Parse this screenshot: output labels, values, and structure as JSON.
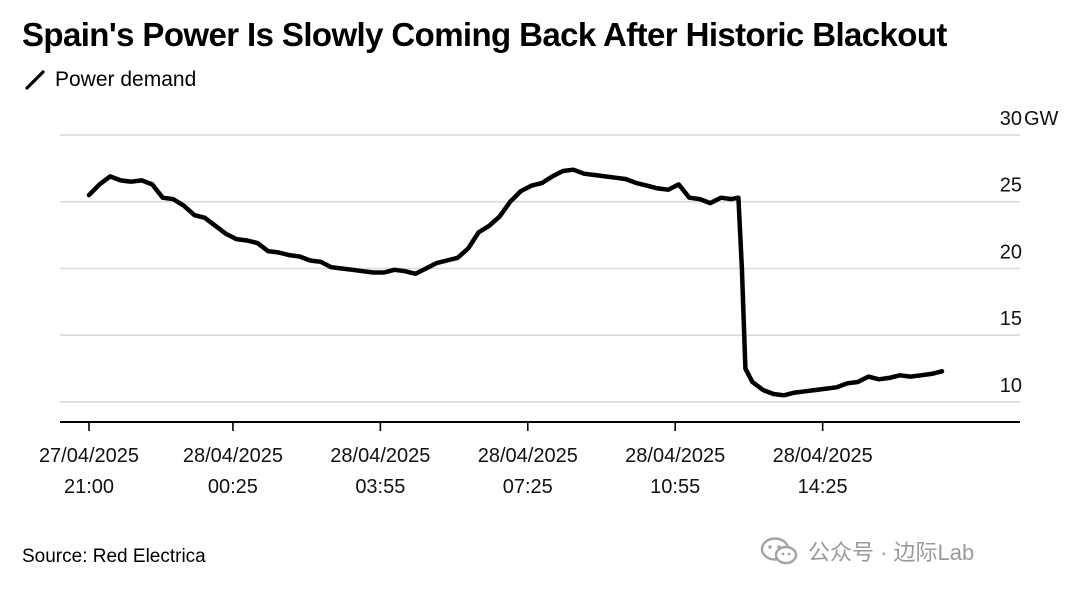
{
  "title": "Spain's Power Is Slowly Coming Back After Historic Blackout",
  "legend_label": "Power demand",
  "source": "Source: Red Electrica",
  "watermark": "公众号 · 边际Lab",
  "colors": {
    "line": "#000000",
    "grid": "#d9d9d9",
    "axis": "#000000",
    "text": "#111111",
    "watermark": "#9a9a9a"
  },
  "chart_data": {
    "type": "line",
    "title": "Spain's Power Is Slowly Coming Back After Historic Blackout",
    "xlabel": "",
    "ylabel": "",
    "unit": "GW",
    "ylim": [
      8.5,
      30
    ],
    "y_ticks": [
      {
        "value": 30,
        "label": "30",
        "unit": "GW"
      },
      {
        "value": 25,
        "label": "25"
      },
      {
        "value": 20,
        "label": "20"
      },
      {
        "value": 15,
        "label": "15"
      },
      {
        "value": 10,
        "label": "10"
      }
    ],
    "x_range": [
      "27/04/2025 21:00",
      "28/04/2025 17:15"
    ],
    "x_ticks": [
      {
        "value": "27/04/2025 21:00",
        "date": "27/04/2025",
        "time": "21:00"
      },
      {
        "value": "28/04/2025 00:25",
        "date": "28/04/2025",
        "time": "00:25"
      },
      {
        "value": "28/04/2025 03:55",
        "date": "28/04/2025",
        "time": "03:55"
      },
      {
        "value": "28/04/2025 07:25",
        "date": "28/04/2025",
        "time": "07:25"
      },
      {
        "value": "28/04/2025 10:55",
        "date": "28/04/2025",
        "time": "10:55"
      },
      {
        "value": "28/04/2025 14:25",
        "date": "28/04/2025",
        "time": "14:25"
      }
    ],
    "grid": true,
    "series": [
      {
        "name": "Power demand",
        "points": [
          [
            "27/04/2025 21:00",
            25.5
          ],
          [
            "27/04/2025 21:15",
            26.3
          ],
          [
            "27/04/2025 21:30",
            26.9
          ],
          [
            "27/04/2025 21:45",
            26.6
          ],
          [
            "27/04/2025 22:00",
            26.5
          ],
          [
            "27/04/2025 22:15",
            26.6
          ],
          [
            "27/04/2025 22:30",
            26.3
          ],
          [
            "27/04/2025 22:45",
            25.3
          ],
          [
            "27/04/2025 23:00",
            25.2
          ],
          [
            "27/04/2025 23:15",
            24.7
          ],
          [
            "27/04/2025 23:30",
            24.0
          ],
          [
            "27/04/2025 23:45",
            23.8
          ],
          [
            "28/04/2025 00:00",
            23.2
          ],
          [
            "28/04/2025 00:15",
            22.6
          ],
          [
            "28/04/2025 00:30",
            22.2
          ],
          [
            "28/04/2025 00:45",
            22.1
          ],
          [
            "28/04/2025 01:00",
            21.9
          ],
          [
            "28/04/2025 01:15",
            21.3
          ],
          [
            "28/04/2025 01:30",
            21.2
          ],
          [
            "28/04/2025 01:45",
            21.0
          ],
          [
            "28/04/2025 02:00",
            20.9
          ],
          [
            "28/04/2025 02:15",
            20.6
          ],
          [
            "28/04/2025 02:30",
            20.5
          ],
          [
            "28/04/2025 02:45",
            20.1
          ],
          [
            "28/04/2025 03:00",
            20.0
          ],
          [
            "28/04/2025 03:15",
            19.9
          ],
          [
            "28/04/2025 03:30",
            19.8
          ],
          [
            "28/04/2025 03:45",
            19.7
          ],
          [
            "28/04/2025 04:00",
            19.7
          ],
          [
            "28/04/2025 04:15",
            19.9
          ],
          [
            "28/04/2025 04:30",
            19.8
          ],
          [
            "28/04/2025 04:45",
            19.6
          ],
          [
            "28/04/2025 05:00",
            20.0
          ],
          [
            "28/04/2025 05:15",
            20.4
          ],
          [
            "28/04/2025 05:30",
            20.6
          ],
          [
            "28/04/2025 05:45",
            20.8
          ],
          [
            "28/04/2025 06:00",
            21.5
          ],
          [
            "28/04/2025 06:15",
            22.7
          ],
          [
            "28/04/2025 06:30",
            23.2
          ],
          [
            "28/04/2025 06:45",
            23.9
          ],
          [
            "28/04/2025 07:00",
            25.0
          ],
          [
            "28/04/2025 07:15",
            25.8
          ],
          [
            "28/04/2025 07:30",
            26.2
          ],
          [
            "28/04/2025 07:45",
            26.4
          ],
          [
            "28/04/2025 08:00",
            26.9
          ],
          [
            "28/04/2025 08:15",
            27.3
          ],
          [
            "28/04/2025 08:30",
            27.4
          ],
          [
            "28/04/2025 08:45",
            27.1
          ],
          [
            "28/04/2025 09:00",
            27.0
          ],
          [
            "28/04/2025 09:15",
            26.9
          ],
          [
            "28/04/2025 09:30",
            26.8
          ],
          [
            "28/04/2025 09:45",
            26.7
          ],
          [
            "28/04/2025 10:00",
            26.4
          ],
          [
            "28/04/2025 10:15",
            26.2
          ],
          [
            "28/04/2025 10:30",
            26.0
          ],
          [
            "28/04/2025 10:45",
            25.9
          ],
          [
            "28/04/2025 11:00",
            26.3
          ],
          [
            "28/04/2025 11:15",
            25.3
          ],
          [
            "28/04/2025 11:30",
            25.2
          ],
          [
            "28/04/2025 11:45",
            24.9
          ],
          [
            "28/04/2025 12:00",
            25.3
          ],
          [
            "28/04/2025 12:15",
            25.2
          ],
          [
            "28/04/2025 12:25",
            25.3
          ],
          [
            "28/04/2025 12:30",
            20.0
          ],
          [
            "28/04/2025 12:35",
            12.5
          ],
          [
            "28/04/2025 12:45",
            11.5
          ],
          [
            "28/04/2025 13:00",
            10.9
          ],
          [
            "28/04/2025 13:15",
            10.6
          ],
          [
            "28/04/2025 13:30",
            10.5
          ],
          [
            "28/04/2025 13:45",
            10.7
          ],
          [
            "28/04/2025 14:00",
            10.8
          ],
          [
            "28/04/2025 14:15",
            10.9
          ],
          [
            "28/04/2025 14:30",
            11.0
          ],
          [
            "28/04/2025 14:45",
            11.1
          ],
          [
            "28/04/2025 15:00",
            11.4
          ],
          [
            "28/04/2025 15:15",
            11.5
          ],
          [
            "28/04/2025 15:30",
            11.9
          ],
          [
            "28/04/2025 15:45",
            11.7
          ],
          [
            "28/04/2025 16:00",
            11.8
          ],
          [
            "28/04/2025 16:15",
            12.0
          ],
          [
            "28/04/2025 16:30",
            11.9
          ],
          [
            "28/04/2025 16:45",
            12.0
          ],
          [
            "28/04/2025 17:00",
            12.1
          ],
          [
            "28/04/2025 17:15",
            12.3
          ]
        ]
      }
    ]
  }
}
